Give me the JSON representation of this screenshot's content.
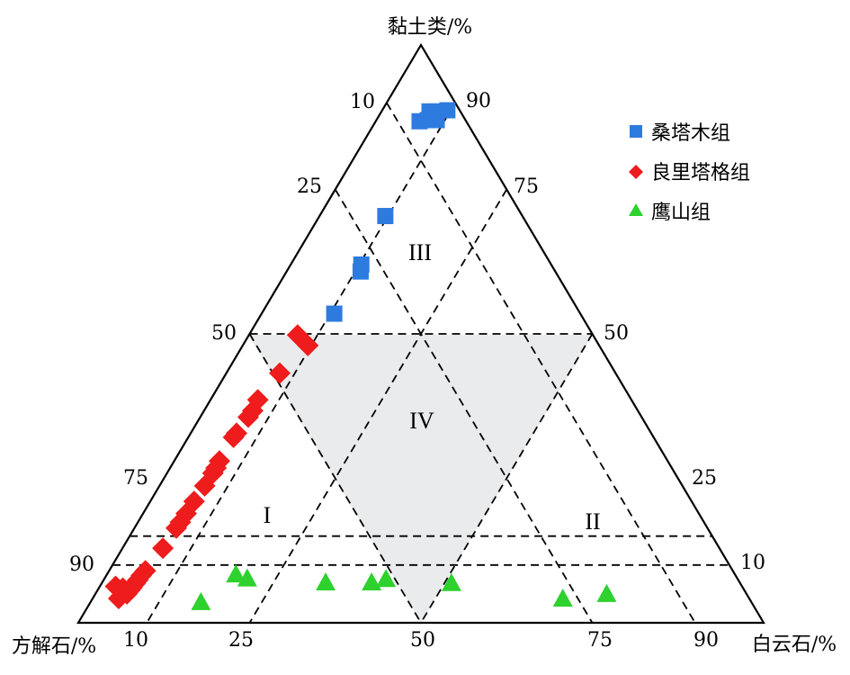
{
  "chart_data": {
    "type": "scatter",
    "subtype": "ternary",
    "axes": {
      "top": "黏土类/%",
      "left": "方解石/%",
      "right": "白云石/%"
    },
    "ticks": {
      "left_edge": [
        "10",
        "25",
        "50",
        "75",
        "90"
      ],
      "right_edge": [
        "90",
        "75",
        "50",
        "25",
        "10"
      ],
      "bottom_edge": [
        "10",
        "25",
        "50",
        "75",
        "90"
      ]
    },
    "zones": [
      "III",
      "IV",
      "I",
      "II"
    ],
    "shaded_zone": "IV",
    "shade_color": "#e9ebec",
    "grid": true,
    "legend_position": "top-right",
    "series": [
      {
        "name": "桑塔木组",
        "marker": "square",
        "color": "#2e7be0",
        "points": [
          {
            "clay": 86.8,
            "calcite": 6.8
          },
          {
            "clay": 87.0,
            "calcite": 5.5
          },
          {
            "clay": 87.0,
            "calcite": 4.2
          },
          {
            "clay": 88.5,
            "calcite": 4.5
          },
          {
            "clay": 88.5,
            "calcite": 3.6
          },
          {
            "clay": 88.7,
            "calcite": 1.8
          },
          {
            "clay": 70.4,
            "calcite": 20.0
          },
          {
            "clay": 60.8,
            "calcite": 28.4
          },
          {
            "clay": 62.0,
            "calcite": 27.7
          },
          {
            "clay": 53.5,
            "calcite": 35.9
          }
        ]
      },
      {
        "name": "良里塔格组",
        "marker": "diamond",
        "color": "#ee1c1c",
        "points": [
          {
            "clay": 49.8,
            "calcite": 43.1
          },
          {
            "clay": 48.0,
            "calcite": 42.5
          },
          {
            "clay": 43.2,
            "calcite": 49.0
          },
          {
            "clay": 38.6,
            "calcite": 54.5
          },
          {
            "clay": 36.7,
            "calcite": 56.2
          },
          {
            "clay": 35.6,
            "calcite": 57.4
          },
          {
            "clay": 32.8,
            "calcite": 60.5
          },
          {
            "clay": 32.1,
            "calcite": 61.3
          },
          {
            "clay": 28.0,
            "calcite": 65.4
          },
          {
            "clay": 26.8,
            "calcite": 66.5
          },
          {
            "clay": 25.9,
            "calcite": 67.4
          },
          {
            "clay": 23.7,
            "calcite": 69.7
          },
          {
            "clay": 21.0,
            "calcite": 72.6
          },
          {
            "clay": 18.9,
            "calcite": 74.8
          },
          {
            "clay": 17.4,
            "calcite": 76.4
          },
          {
            "clay": 16.4,
            "calcite": 77.5
          },
          {
            "clay": 12.9,
            "calcite": 81.2
          },
          {
            "clay": 9.0,
            "calcite": 85.7
          },
          {
            "clay": 8.2,
            "calcite": 86.7
          },
          {
            "clay": 7.4,
            "calcite": 87.6
          },
          {
            "clay": 6.8,
            "calcite": 88.3
          },
          {
            "clay": 6.1,
            "calcite": 89.1
          },
          {
            "clay": 5.6,
            "calcite": 89.7
          },
          {
            "clay": 5.0,
            "calcite": 90.4
          },
          {
            "clay": 6.0,
            "calcite": 90.5
          },
          {
            "clay": 4.6,
            "calcite": 91.5
          },
          {
            "clay": 4.2,
            "calcite": 92.0
          },
          {
            "clay": 6.3,
            "calcite": 91.4
          }
        ]
      },
      {
        "name": "鹰山组",
        "marker": "triangle",
        "color": "#2ed12e",
        "points": [
          {
            "clay": 3.6,
            "calcite": 80.3
          },
          {
            "clay": 8.4,
            "calcite": 72.8
          },
          {
            "clay": 7.7,
            "calcite": 71.5
          },
          {
            "clay": 7.0,
            "calcite": 60.4
          },
          {
            "clay": 7.0,
            "calcite": 53.7
          },
          {
            "clay": 7.6,
            "calcite": 51.3
          },
          {
            "clay": 6.9,
            "calcite": 42.1
          },
          {
            "clay": 4.2,
            "calcite": 27.2
          },
          {
            "clay": 5.0,
            "calcite": 20.4
          }
        ]
      }
    ]
  }
}
